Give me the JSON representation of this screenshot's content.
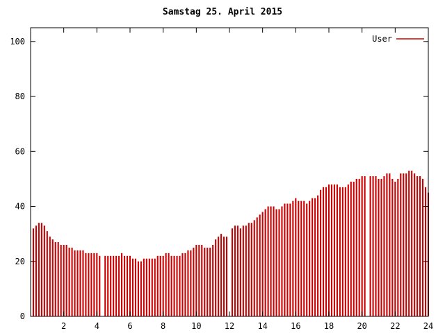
{
  "title": "Samstag 25. April 2015",
  "colors": {
    "bar": "#cc0000",
    "axis": "#000000",
    "text": "#000000",
    "background": "#ffffff"
  },
  "legend": {
    "label": "User",
    "position": "top-right"
  },
  "chart_data": {
    "type": "bar",
    "title": "Samstag 25. April 2015",
    "xlabel": "",
    "ylabel": "",
    "xlim": [
      0,
      24
    ],
    "ylim": [
      0,
      105
    ],
    "x_ticks": [
      2,
      4,
      6,
      8,
      10,
      12,
      14,
      16,
      18,
      20,
      22,
      24
    ],
    "y_ticks": [
      0,
      20,
      40,
      60,
      80,
      100
    ],
    "grid": false,
    "x_unit": "hour",
    "sample_interval_minutes": 10,
    "note": "bar i is at time (i+1)/6 hours; value 0 = missing sample gap",
    "series": [
      {
        "name": "User",
        "color": "#cc0000",
        "values": [
          32,
          33,
          34,
          34,
          33,
          31,
          29,
          28,
          27,
          27,
          26,
          26,
          26,
          25,
          25,
          24,
          24,
          24,
          24,
          23,
          23,
          23,
          23,
          23,
          22,
          0,
          22,
          22,
          22,
          22,
          22,
          22,
          23,
          22,
          22,
          22,
          21,
          21,
          20,
          20,
          21,
          21,
          21,
          21,
          21,
          22,
          22,
          22,
          23,
          23,
          22,
          22,
          22,
          22,
          23,
          23,
          24,
          24,
          25,
          26,
          26,
          26,
          25,
          25,
          25,
          26,
          28,
          29,
          30,
          29,
          29,
          0,
          32,
          33,
          33,
          32,
          33,
          33,
          34,
          34,
          35,
          36,
          37,
          38,
          39,
          40,
          40,
          40,
          39,
          39,
          40,
          41,
          41,
          41,
          42,
          43,
          42,
          42,
          42,
          41,
          42,
          43,
          43,
          44,
          46,
          47,
          47,
          48,
          48,
          48,
          48,
          47,
          47,
          47,
          48,
          49,
          49,
          50,
          50,
          51,
          51,
          0,
          51,
          51,
          51,
          50,
          50,
          51,
          52,
          52,
          50,
          49,
          50,
          52,
          52,
          52,
          53,
          53,
          52,
          51,
          51,
          50,
          47,
          45
        ]
      }
    ]
  }
}
